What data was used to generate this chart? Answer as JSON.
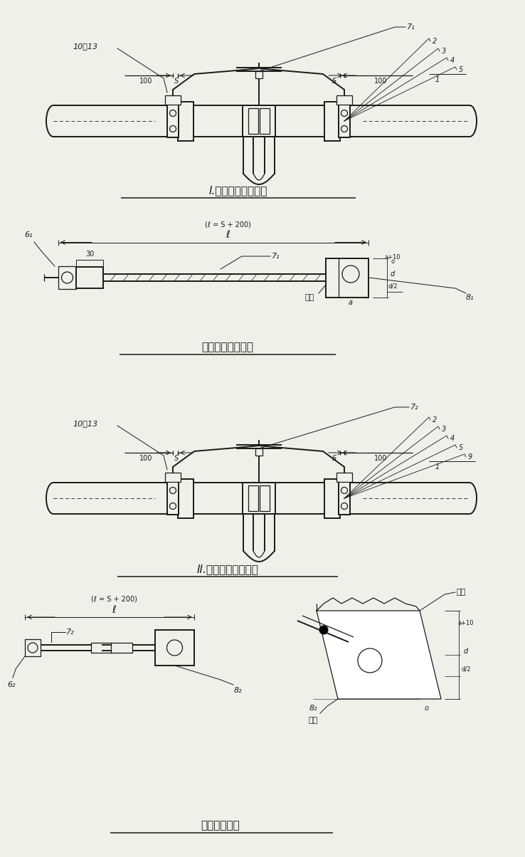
{
  "bg_color": "#f0efe8",
  "line_color": "#1a1a1a",
  "title1": "I.管道阀门钢丝跨接",
  "title2": "钢丝跨接装置详图",
  "title3": "II.管道阀门铜线跨接",
  "title4": "铜跨接线详图",
  "label_10_13": "10～13",
  "label_71": "7₁",
  "label_72": "7₂",
  "label_61": "6₁",
  "label_62": "6₂",
  "label_81": "8₁",
  "label_82": "8₂",
  "label_hanjie": "焊接",
  "label_hanbo": "焊波",
  "label_subian": "素边",
  "label_l_formula": "(ℓ = S + 200)",
  "label_30": "30"
}
